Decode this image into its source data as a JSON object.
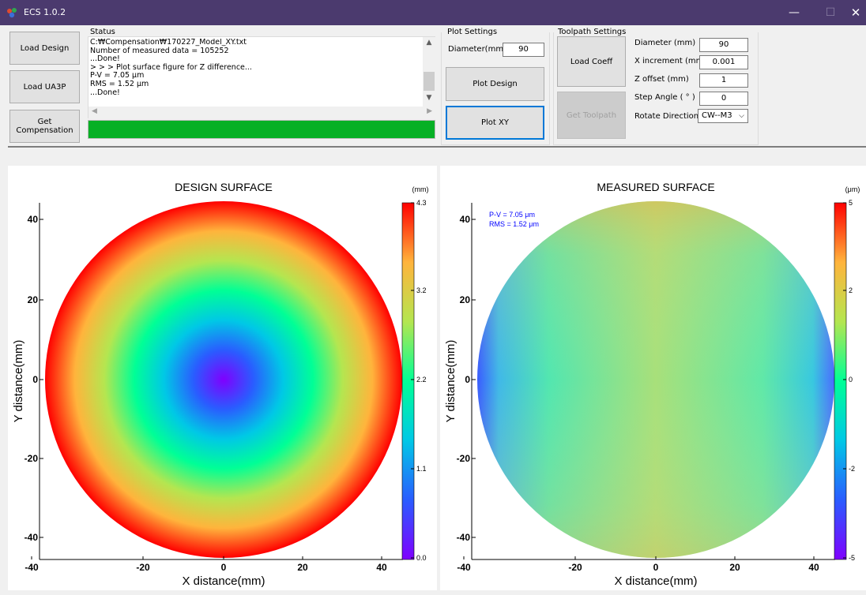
{
  "window": {
    "title": "ECS 1.0.2",
    "minimize_glyph": "—",
    "maximize_glyph": "☐",
    "close_glyph": "✕"
  },
  "buttons": {
    "load_design": "Load Design",
    "load_ua3p": "Load UA3P",
    "get_compensation": "Get Compensation",
    "plot_design": "Plot Design",
    "plot_xy": "Plot XY",
    "load_coeff": "Load Coeff",
    "get_toolpath": "Get Toolpath"
  },
  "status": {
    "group_label": "Status",
    "lines": [
      "C:₩Compensation₩170227_Model_XY.txt",
      "Number of measured data = 105252",
      "...Done!",
      "> > > Plot surface figure for Z difference...",
      "P-V = 7.05 μm",
      "RMS = 1.52 μm",
      "...Done!"
    ],
    "progress_percent": 100
  },
  "plot_settings": {
    "group_label": "Plot Settings",
    "diameter_label": "Diameter(mm)",
    "diameter_value": "90"
  },
  "toolpath_settings": {
    "group_label": "Toolpath Settings",
    "diameter_label": "Diameter    (mm)",
    "diameter_value": "90",
    "x_increment_label": "X increment (mm)",
    "x_increment_value": "0.001",
    "z_offset_label": "Z offset      (mm)",
    "z_offset_value": "1",
    "step_angle_label": "Step Angle  ( ° )",
    "step_angle_value": "0",
    "rotate_direction_label": "Rotate Direction",
    "rotate_direction_value": "CW--M3"
  },
  "plots": [
    {
      "title": "DESIGN SURFACE",
      "xlabel": "X distance(mm)",
      "ylabel": "Y distance(mm)",
      "x_ticks": [
        "-40",
        "-20",
        "0",
        "20",
        "40"
      ],
      "y_ticks": [
        "40",
        "20",
        "0",
        "-20",
        "-40"
      ],
      "colorbar_unit": "(mm)",
      "colorbar_ticks": [
        "4.3",
        "3.2",
        "2.2",
        "1.1",
        "0.0"
      ],
      "annotations": []
    },
    {
      "title": "MEASURED SURFACE",
      "xlabel": "X distance(mm)",
      "ylabel": "Y distance(mm)",
      "x_ticks": [
        "-40",
        "-20",
        "0",
        "20",
        "40"
      ],
      "y_ticks": [
        "40",
        "20",
        "0",
        "-20",
        "-40"
      ],
      "colorbar_unit": "(μm)",
      "colorbar_ticks": [
        "5",
        "2",
        "0",
        "-2",
        "-5"
      ],
      "annotations": [
        "P-V = 7.05 μm",
        "RMS = 1.52 μm"
      ]
    }
  ],
  "colors": {
    "titlebar": "#4b3a6e",
    "progress": "#06b025",
    "focus_border": "#0078d7",
    "annotation_text": "#0000ff",
    "colormap": [
      "#7f00ff",
      "#2a5cff",
      "#00c8e6",
      "#00ff96",
      "#b4e650",
      "#ffb43c",
      "#ff0000"
    ]
  }
}
